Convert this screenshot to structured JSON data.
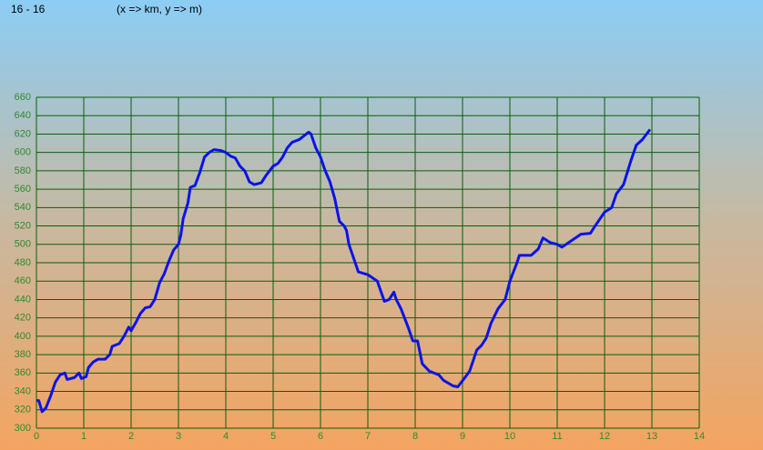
{
  "chart_data": {
    "type": "line",
    "title": "16 - 16",
    "subtitle": "(x => km, y => m)",
    "x": [
      0,
      0.05,
      0.12,
      0.2,
      0.3,
      0.4,
      0.5,
      0.6,
      0.65,
      0.8,
      0.9,
      0.95,
      1.05,
      1.1,
      1.2,
      1.3,
      1.45,
      1.55,
      1.6,
      1.75,
      1.85,
      1.95,
      2.0,
      2.1,
      2.2,
      2.3,
      2.4,
      2.5,
      2.6,
      2.7,
      2.8,
      2.9,
      3.0,
      3.05,
      3.1,
      3.2,
      3.25,
      3.35,
      3.45,
      3.55,
      3.65,
      3.75,
      3.9,
      4.0,
      4.1,
      4.2,
      4.3,
      4.4,
      4.5,
      4.6,
      4.75,
      4.85,
      5.0,
      5.1,
      5.2,
      5.3,
      5.4,
      5.55,
      5.65,
      5.75,
      5.8,
      5.9,
      6.0,
      6.1,
      6.2,
      6.3,
      6.4,
      6.5,
      6.55,
      6.6,
      6.7,
      6.8,
      7.0,
      7.2,
      7.35,
      7.45,
      7.55,
      7.6,
      7.7,
      7.85,
      7.95,
      8.05,
      8.15,
      8.3,
      8.5,
      8.6,
      8.8,
      8.9,
      9.05,
      9.15,
      9.3,
      9.4,
      9.5,
      9.6,
      9.75,
      9.9,
      10.0,
      10.15,
      10.2,
      10.45,
      10.6,
      10.7,
      10.85,
      11.0,
      11.1,
      11.3,
      11.5,
      11.7,
      11.8,
      12.0,
      12.15,
      12.25,
      12.4,
      12.55,
      12.67,
      12.8,
      12.96
    ],
    "series": [
      {
        "name": "elevation",
        "color": "#0a14e6",
        "values": [
          330,
          330,
          318,
          322,
          335,
          350,
          358,
          360,
          353,
          355,
          360,
          354,
          356,
          366,
          372,
          375,
          375,
          380,
          389,
          392,
          400,
          410,
          406,
          415,
          425,
          431,
          432,
          440,
          458,
          468,
          482,
          494,
          500,
          510,
          528,
          545,
          562,
          564,
          578,
          595,
          600,
          603,
          602,
          600,
          596,
          594,
          585,
          580,
          568,
          565,
          567,
          575,
          585,
          588,
          595,
          605,
          611,
          614,
          618,
          622,
          620,
          605,
          595,
          580,
          568,
          550,
          525,
          520,
          515,
          500,
          485,
          470,
          467,
          460,
          438,
          440,
          448,
          440,
          430,
          410,
          395,
          395,
          370,
          362,
          358,
          352,
          346,
          345,
          355,
          362,
          385,
          390,
          398,
          414,
          430,
          440,
          460,
          480,
          488,
          488,
          495,
          507,
          502,
          500,
          497,
          504,
          511,
          512,
          520,
          535,
          540,
          555,
          565,
          590,
          608,
          614,
          625
        ]
      }
    ],
    "xlim": [
      0,
      14
    ],
    "xticks": [
      0,
      1,
      2,
      3,
      4,
      5,
      6,
      7,
      8,
      9,
      10,
      11,
      12,
      13,
      14
    ],
    "ylim": [
      300,
      660
    ],
    "yticks": [
      300,
      320,
      340,
      360,
      380,
      400,
      420,
      440,
      460,
      480,
      500,
      520,
      540,
      560,
      580,
      600,
      620,
      640,
      660
    ],
    "grid": true
  }
}
